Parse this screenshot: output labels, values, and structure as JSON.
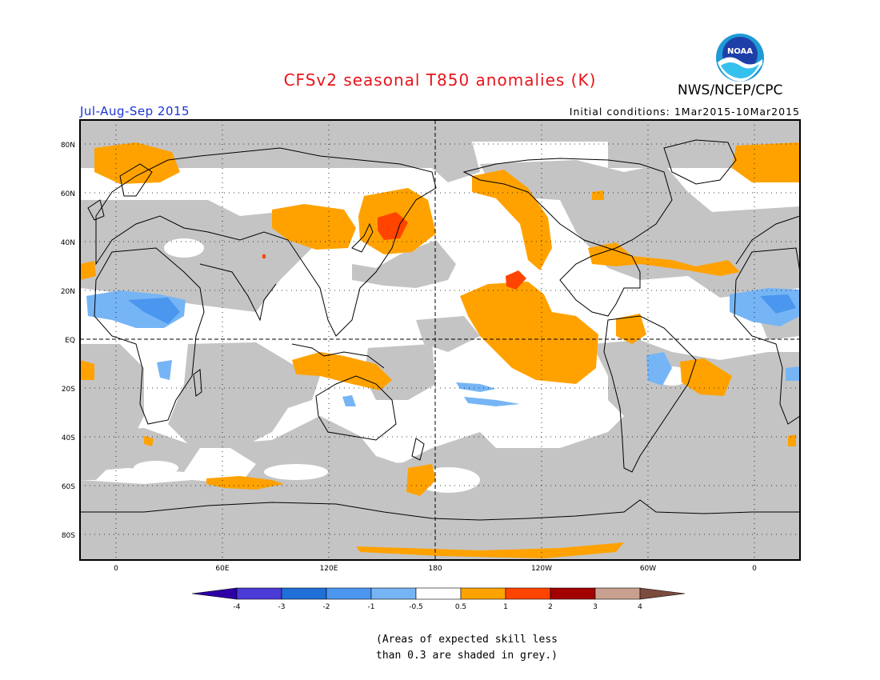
{
  "header": {
    "title": "CFSv2 seasonal T850 anomalies (K)",
    "period": "Jul-Aug-Sep 2015",
    "initial_conditions": "Initial conditions: 1Mar2015-10Mar2015",
    "organization": "NWS/NCEP/CPC",
    "logo_text": "NOAA"
  },
  "map": {
    "lat_labels": [
      "80N",
      "60N",
      "40N",
      "20N",
      "EQ",
      "20S",
      "40S",
      "60S",
      "80S"
    ],
    "lon_labels": [
      "0",
      "60E",
      "120E",
      "180",
      "120W",
      "60W",
      "0"
    ],
    "colors": {
      "skill_grey": "#c4c4c4",
      "ocean_land_default": "#ffffff",
      "anom_0_5_1": "#ffa200",
      "anom_1_2": "#ff4400",
      "anom_neg_1_neg_0_5": "#76b5f5",
      "anom_neg_2_neg_1": "#4b96ee"
    }
  },
  "colorbar": {
    "labels": [
      "-4",
      "-3",
      "-2",
      "-1",
      "-0.5",
      "0.5",
      "1",
      "2",
      "3",
      "4"
    ],
    "colors": [
      "#2c00a6",
      "#4a3ad6",
      "#1f6fd8",
      "#4b96ee",
      "#76b5f5",
      "#ffffff",
      "#ffa200",
      "#ff4400",
      "#a30000",
      "#c9a090",
      "#7b4b3e"
    ]
  },
  "footnote": {
    "line1": "(Areas of expected skill less",
    "line2": "than 0.3 are shaded in grey.)"
  }
}
